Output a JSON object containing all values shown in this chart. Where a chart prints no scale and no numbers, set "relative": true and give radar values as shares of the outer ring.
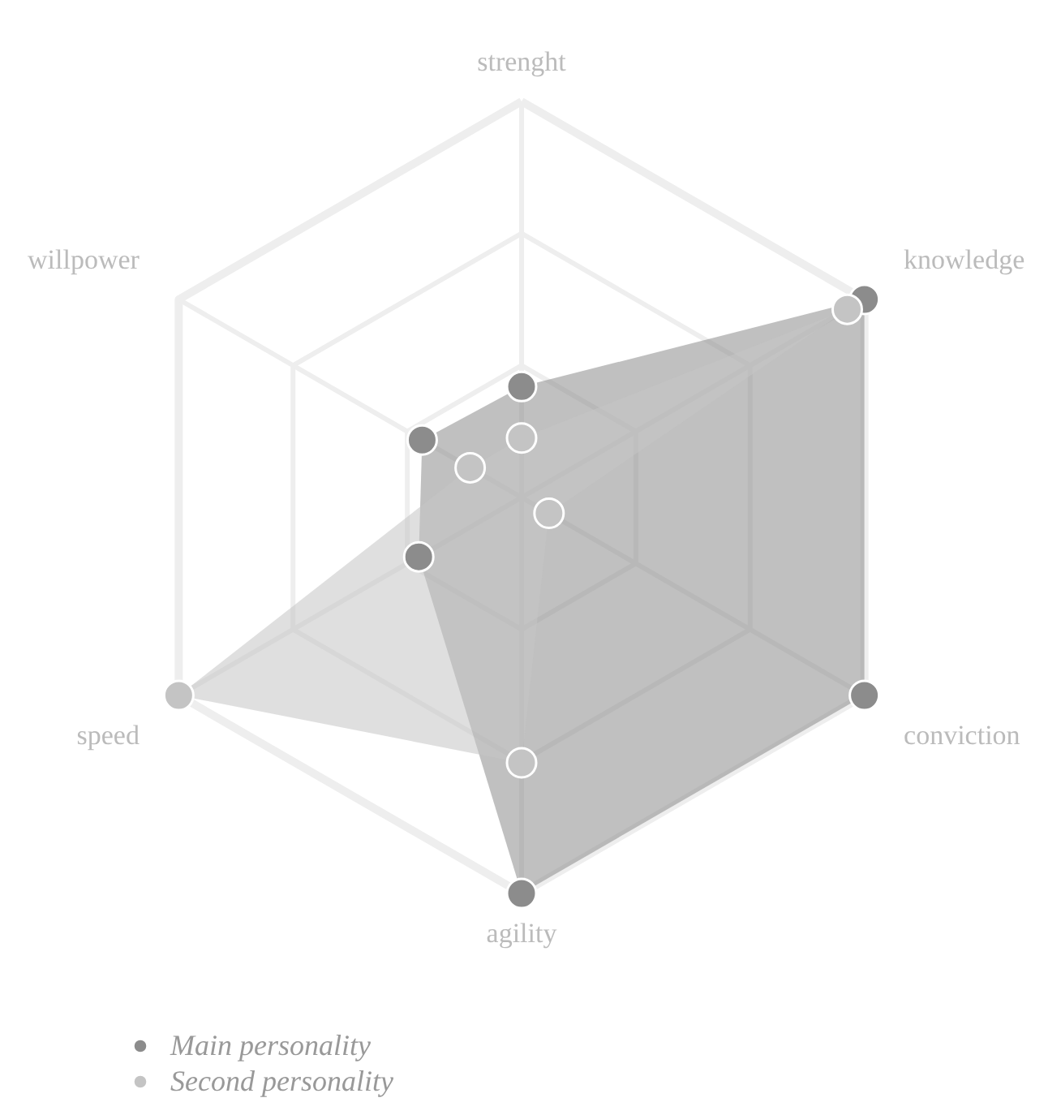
{
  "chart_data": {
    "type": "radar",
    "relative": true,
    "categories": [
      "strenght",
      "knowledge",
      "conviction",
      "agility",
      "speed",
      "willpower"
    ],
    "series": [
      {
        "name": "Main personality",
        "color": "#8c8c8c",
        "values": [
          0.28,
          1.0,
          1.0,
          1.0,
          0.3,
          0.29
        ]
      },
      {
        "name": "Second personality",
        "color": "#c4c4c4",
        "values": [
          0.15,
          0.95,
          0.08,
          0.67,
          1.0,
          0.15
        ]
      }
    ],
    "grid": true,
    "legend": "bottom left",
    "marker": "circle"
  }
}
